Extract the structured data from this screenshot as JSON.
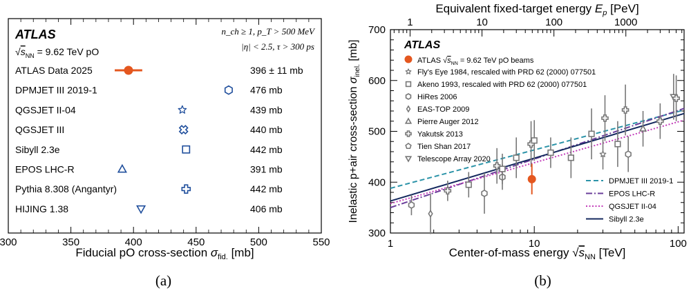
{
  "colors": {
    "atlas_data": "#e4571f",
    "model_marker": "#1f4e9c",
    "dpmjet": "#2b93a8",
    "epos": "#6a3d9a",
    "qgsjet": "#c23ab9",
    "sibyll": "#14285e",
    "cr_points": "#777777",
    "frame": "#000000"
  },
  "chart_data": [
    {
      "type": "scatter",
      "panel_label": "(a)",
      "header": {
        "experiment": "ATLAS",
        "energy_text": "= 9.62 TeV pO",
        "energy_symbol": "√s_NN",
        "cut_line_1": "n_ch ≥ 1, p_T > 500 MeV",
        "cut_line_2": "|η| < 2.5, τ > 300 ps"
      },
      "xlabel": "Fiducial pO cross-section",
      "xlabel_symbol": "σ_fid.",
      "xlabel_unit": "[mb]",
      "xlim": [
        300,
        550
      ],
      "xticks": [
        300,
        350,
        400,
        450,
        500,
        550
      ],
      "entries": [
        {
          "label": "ATLAS Data 2025",
          "value": 396,
          "error": 11,
          "value_text": "396 ± 11 mb",
          "marker": "dot",
          "is_data": true
        },
        {
          "label": "DPMJET III 2019-1",
          "value": 476,
          "value_text": "476 mb",
          "marker": "hexagon"
        },
        {
          "label": "QGSJET II-04",
          "value": 439,
          "value_text": "439 mb",
          "marker": "star"
        },
        {
          "label": "QGSJET III",
          "value": 440,
          "value_text": "440 mb",
          "marker": "cross-x"
        },
        {
          "label": "Sibyll 2.3e",
          "value": 442,
          "value_text": "442 mb",
          "marker": "square"
        },
        {
          "label": "EPOS LHC-R",
          "value": 391,
          "value_text": "391 mb",
          "marker": "triangle-up"
        },
        {
          "label": "Pythia 8.308 (Angantyr)",
          "value": 442,
          "value_text": "442 mb",
          "marker": "plus"
        },
        {
          "label": "HIJING 1.38",
          "value": 406,
          "value_text": "406 mb",
          "marker": "triangle-down"
        }
      ]
    },
    {
      "type": "scatter",
      "panel_label": "(b)",
      "experiment": "ATLAS",
      "xlabel": "Center-of-mass energy",
      "xlabel_symbol": "√s_NN",
      "xlabel_unit": "[TeV]",
      "ylabel": "Inelastic p+air cross-section",
      "ylabel_symbol": "σ_inel.",
      "ylabel_unit": "[mb]",
      "top_xlabel": "Equivalent fixed-target energy",
      "top_xlabel_symbol": "E_p",
      "top_xlabel_unit": "[PeV]",
      "xscale": "log",
      "xlim": [
        1,
        110
      ],
      "ylim": [
        300,
        700
      ],
      "xticks": [
        1,
        10,
        100
      ],
      "xtick_labels": [
        "1",
        "10",
        "100"
      ],
      "yticks": [
        300,
        400,
        500,
        600,
        700
      ],
      "top_ticks": [
        1,
        10,
        100,
        1000
      ],
      "top_tick_labels": [
        "1",
        "10",
        "100",
        "1000"
      ],
      "data_legend": [
        {
          "label": "ATLAS",
          "label_energy": "= 9.62 TeV pO beams",
          "marker": "dot",
          "is_data": true
        },
        {
          "label": "Fly's Eye 1984, rescaled with PRD 62 (2000) 077501",
          "marker": "star"
        },
        {
          "label": "Akeno 1993, rescaled with PRD 62 (2000) 077501",
          "marker": "square"
        },
        {
          "label": "HiRes 2006",
          "marker": "hexagon"
        },
        {
          "label": "EAS-TOP 2009",
          "marker": "diamond"
        },
        {
          "label": "Pierre Auger 2012",
          "marker": "triangle-up"
        },
        {
          "label": "Yakutsk 2013",
          "marker": "plus"
        },
        {
          "label": "Tien Shan 2017",
          "marker": "pentagon"
        },
        {
          "label": "Telescope Array 2020",
          "marker": "triangle-down"
        }
      ],
      "model_legend": [
        {
          "label": "DPMJET III 2019-1",
          "style": "dashed",
          "color_key": "dpmjet"
        },
        {
          "label": "EPOS LHC-R",
          "style": "dashdot",
          "color_key": "epos"
        },
        {
          "label": "QGSJET II-04",
          "style": "dotted",
          "color_key": "qgsjet"
        },
        {
          "label": "Sibyll 2.3e",
          "style": "solid",
          "color_key": "sibyll"
        }
      ],
      "curves": [
        {
          "name": "DPMJET III 2019-1",
          "style": "dashed",
          "color_key": "dpmjet",
          "x": [
            1,
            110
          ],
          "y": [
            388,
            542
          ]
        },
        {
          "name": "EPOS LHC-R",
          "style": "dashdot",
          "color_key": "epos",
          "x": [
            1,
            110
          ],
          "y": [
            350,
            545
          ]
        },
        {
          "name": "QGSJET II-04",
          "style": "dotted",
          "color_key": "qgsjet",
          "x": [
            1,
            110
          ],
          "y": [
            358,
            522
          ]
        },
        {
          "name": "Sibyll 2.3e",
          "style": "solid",
          "color_key": "sibyll",
          "x": [
            1,
            110
          ],
          "y": [
            363,
            535
          ]
        }
      ],
      "atlas_point": {
        "x": 9.62,
        "y": 406,
        "yerr": 30
      },
      "cr_points": [
        {
          "x": 1.4,
          "y": 355,
          "err": 20,
          "marker": "hexagon"
        },
        {
          "x": 1.9,
          "y": 338,
          "err": 40,
          "marker": "diamond"
        },
        {
          "x": 2.5,
          "y": 383,
          "err": 20,
          "marker": "plus"
        },
        {
          "x": 3.5,
          "y": 395,
          "err": 25,
          "marker": "square"
        },
        {
          "x": 4.5,
          "y": 378,
          "err": 40,
          "marker": "hexagon"
        },
        {
          "x": 5.5,
          "y": 432,
          "err": 35,
          "marker": "plus"
        },
        {
          "x": 6.0,
          "y": 410,
          "err": 25,
          "marker": "hexagon"
        },
        {
          "x": 6.0,
          "y": 426,
          "err": 30,
          "marker": "square"
        },
        {
          "x": 7.5,
          "y": 448,
          "err": 40,
          "marker": "square"
        },
        {
          "x": 9.5,
          "y": 475,
          "err": 45,
          "marker": "plus"
        },
        {
          "x": 10.0,
          "y": 482,
          "err": 40,
          "marker": "square"
        },
        {
          "x": 13.0,
          "y": 458,
          "err": 30,
          "marker": "square"
        },
        {
          "x": 18.0,
          "y": 448,
          "err": 40,
          "marker": "square"
        },
        {
          "x": 25.0,
          "y": 495,
          "err": 50,
          "marker": "square"
        },
        {
          "x": 30.0,
          "y": 455,
          "err": 30,
          "marker": "star"
        },
        {
          "x": 31.0,
          "y": 526,
          "err": 45,
          "marker": "plus"
        },
        {
          "x": 38.0,
          "y": 475,
          "err": 45,
          "marker": "square"
        },
        {
          "x": 43.0,
          "y": 542,
          "err": 50,
          "marker": "plus"
        },
        {
          "x": 45.0,
          "y": 455,
          "err": 35,
          "marker": "hexagon"
        },
        {
          "x": 57.0,
          "y": 505,
          "err": 35,
          "marker": "triangle-up"
        },
        {
          "x": 75.0,
          "y": 520,
          "err": 35,
          "marker": "plus"
        },
        {
          "x": 93.0,
          "y": 568,
          "err": 45,
          "marker": "triangle-down"
        },
        {
          "x": 97.0,
          "y": 565,
          "err": 45,
          "marker": "plus"
        }
      ]
    }
  ]
}
